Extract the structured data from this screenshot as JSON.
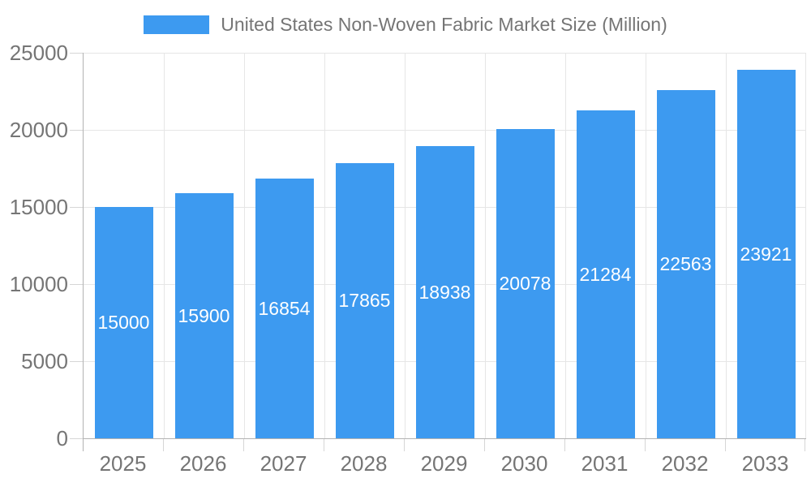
{
  "chart_data": {
    "type": "bar",
    "title": "United States Non-Woven Fabric Market Size (Million)",
    "series": [
      {
        "name": "United States Non-Woven Fabric Market Size (Million)",
        "values": [
          15000,
          15900,
          16854,
          17865,
          18938,
          20078,
          21284,
          22563,
          23921
        ]
      }
    ],
    "categories": [
      "2025",
      "2026",
      "2027",
      "2028",
      "2029",
      "2030",
      "2031",
      "2032",
      "2033"
    ],
    "xlabel": "",
    "ylabel": "",
    "ylim": [
      0,
      25000
    ],
    "yticks": [
      0,
      5000,
      10000,
      15000,
      20000,
      25000
    ],
    "grid": true,
    "legend_position": "top-center",
    "value_label_position": "inside-center"
  },
  "colors": {
    "bar": "#3D9AF0",
    "grid": "#e6e6e6",
    "axis": "#b3b3b3",
    "tick_mark": "#d6d6d6",
    "tick_label": "#757575",
    "legend_label": "#757575",
    "value_label": "#ffffff",
    "background": "#ffffff"
  }
}
